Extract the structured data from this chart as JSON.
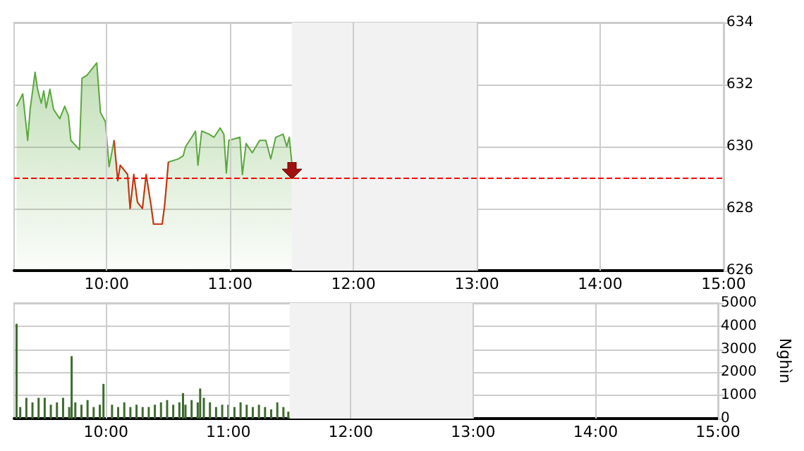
{
  "chart_data": [
    {
      "type": "area",
      "x": [
        9.27,
        9.32,
        9.36,
        9.38,
        9.42,
        9.44,
        9.47,
        9.49,
        9.51,
        9.54,
        9.57,
        9.62,
        9.66,
        9.69,
        9.71,
        9.78,
        9.8,
        9.84,
        9.92,
        9.95,
        9.99,
        10.02,
        10.06,
        10.09,
        10.11,
        10.17,
        10.19,
        10.22,
        10.25,
        10.29,
        10.32,
        10.36,
        10.38,
        10.45,
        10.47,
        10.5,
        10.58,
        10.62,
        10.64,
        10.69,
        10.72,
        10.74,
        10.77,
        10.83,
        10.87,
        10.92,
        10.95,
        10.97,
        10.99,
        11.08,
        11.1,
        11.13,
        11.18,
        11.24,
        11.29,
        11.33,
        11.37,
        11.43,
        11.46,
        11.48,
        11.5
      ],
      "values": [
        631.3,
        631.7,
        630.2,
        631.2,
        632.4,
        631.85,
        631.4,
        631.8,
        631.25,
        631.85,
        631.2,
        630.9,
        631.3,
        631.0,
        630.2,
        629.9,
        632.2,
        632.3,
        632.7,
        631.1,
        630.8,
        629.35,
        630.2,
        628.9,
        629.4,
        629.1,
        628.0,
        629.1,
        628.2,
        628.0,
        629.1,
        628.1,
        627.5,
        627.5,
        628.1,
        629.5,
        629.6,
        629.7,
        630.0,
        630.3,
        630.5,
        629.4,
        630.5,
        630.4,
        630.3,
        630.6,
        630.4,
        629.15,
        630.2,
        630.3,
        629.1,
        630.1,
        629.8,
        630.2,
        630.2,
        629.6,
        630.3,
        630.4,
        630.0,
        630.3,
        629.5
      ],
      "color": "#5aa83c",
      "xlim": [
        9.25,
        15
      ],
      "xticks": [
        {
          "value": 10,
          "label": "10:00"
        },
        {
          "value": 11,
          "label": "11:00"
        },
        {
          "value": 12,
          "label": "12:00"
        },
        {
          "value": 13,
          "label": "13:00"
        },
        {
          "value": 14,
          "label": "14:00"
        },
        {
          "value": 15,
          "label": "15:00"
        }
      ],
      "ylim": [
        626,
        634
      ],
      "yticks": [
        626,
        628,
        630,
        632,
        634
      ],
      "ref_lines": [
        {
          "axis": "y",
          "value": 629,
          "color": "#ff0000",
          "line_style": "dashed"
        }
      ],
      "bands": [
        {
          "axis": "x",
          "from": 11.5,
          "to": 13,
          "color": "#f2f2f2"
        }
      ],
      "grid": true
    },
    {
      "type": "bar",
      "x": [
        9.27,
        9.3,
        9.35,
        9.4,
        9.45,
        9.5,
        9.55,
        9.6,
        9.65,
        9.7,
        9.72,
        9.75,
        9.8,
        9.85,
        9.9,
        9.95,
        9.98,
        10.05,
        10.1,
        10.15,
        10.2,
        10.25,
        10.3,
        10.35,
        10.4,
        10.45,
        10.5,
        10.55,
        10.6,
        10.63,
        10.65,
        10.7,
        10.75,
        10.77,
        10.8,
        10.85,
        10.9,
        10.95,
        11.0,
        11.05,
        11.1,
        11.15,
        11.2,
        11.25,
        11.3,
        11.35,
        11.4,
        11.45,
        11.49
      ],
      "values": [
        4100,
        500,
        900,
        700,
        900,
        900,
        600,
        700,
        900,
        500,
        2700,
        700,
        600,
        800,
        500,
        600,
        1500,
        600,
        500,
        700,
        500,
        600,
        500,
        500,
        600,
        700,
        800,
        600,
        700,
        1100,
        600,
        800,
        700,
        1300,
        900,
        700,
        500,
        600,
        600,
        500,
        700,
        600,
        500,
        600,
        500,
        400,
        700,
        500,
        300
      ],
      "color": "#3d6b2e",
      "xlim": [
        9.25,
        15
      ],
      "xticks": [
        {
          "value": 10,
          "label": "10:00"
        },
        {
          "value": 11,
          "label": "11:00"
        },
        {
          "value": 12,
          "label": "12:00"
        },
        {
          "value": 13,
          "label": "13:00"
        },
        {
          "value": 14,
          "label": "14:00"
        },
        {
          "value": 15,
          "label": "15:00"
        }
      ],
      "ylim": [
        0,
        5000
      ],
      "yticks": [
        0,
        1000,
        2000,
        3000,
        4000,
        5000
      ],
      "ylabel": "Nghìn",
      "bands": [
        {
          "axis": "x",
          "from": 11.5,
          "to": 13,
          "color": "#f2f2f2"
        }
      ],
      "grid": true
    }
  ]
}
